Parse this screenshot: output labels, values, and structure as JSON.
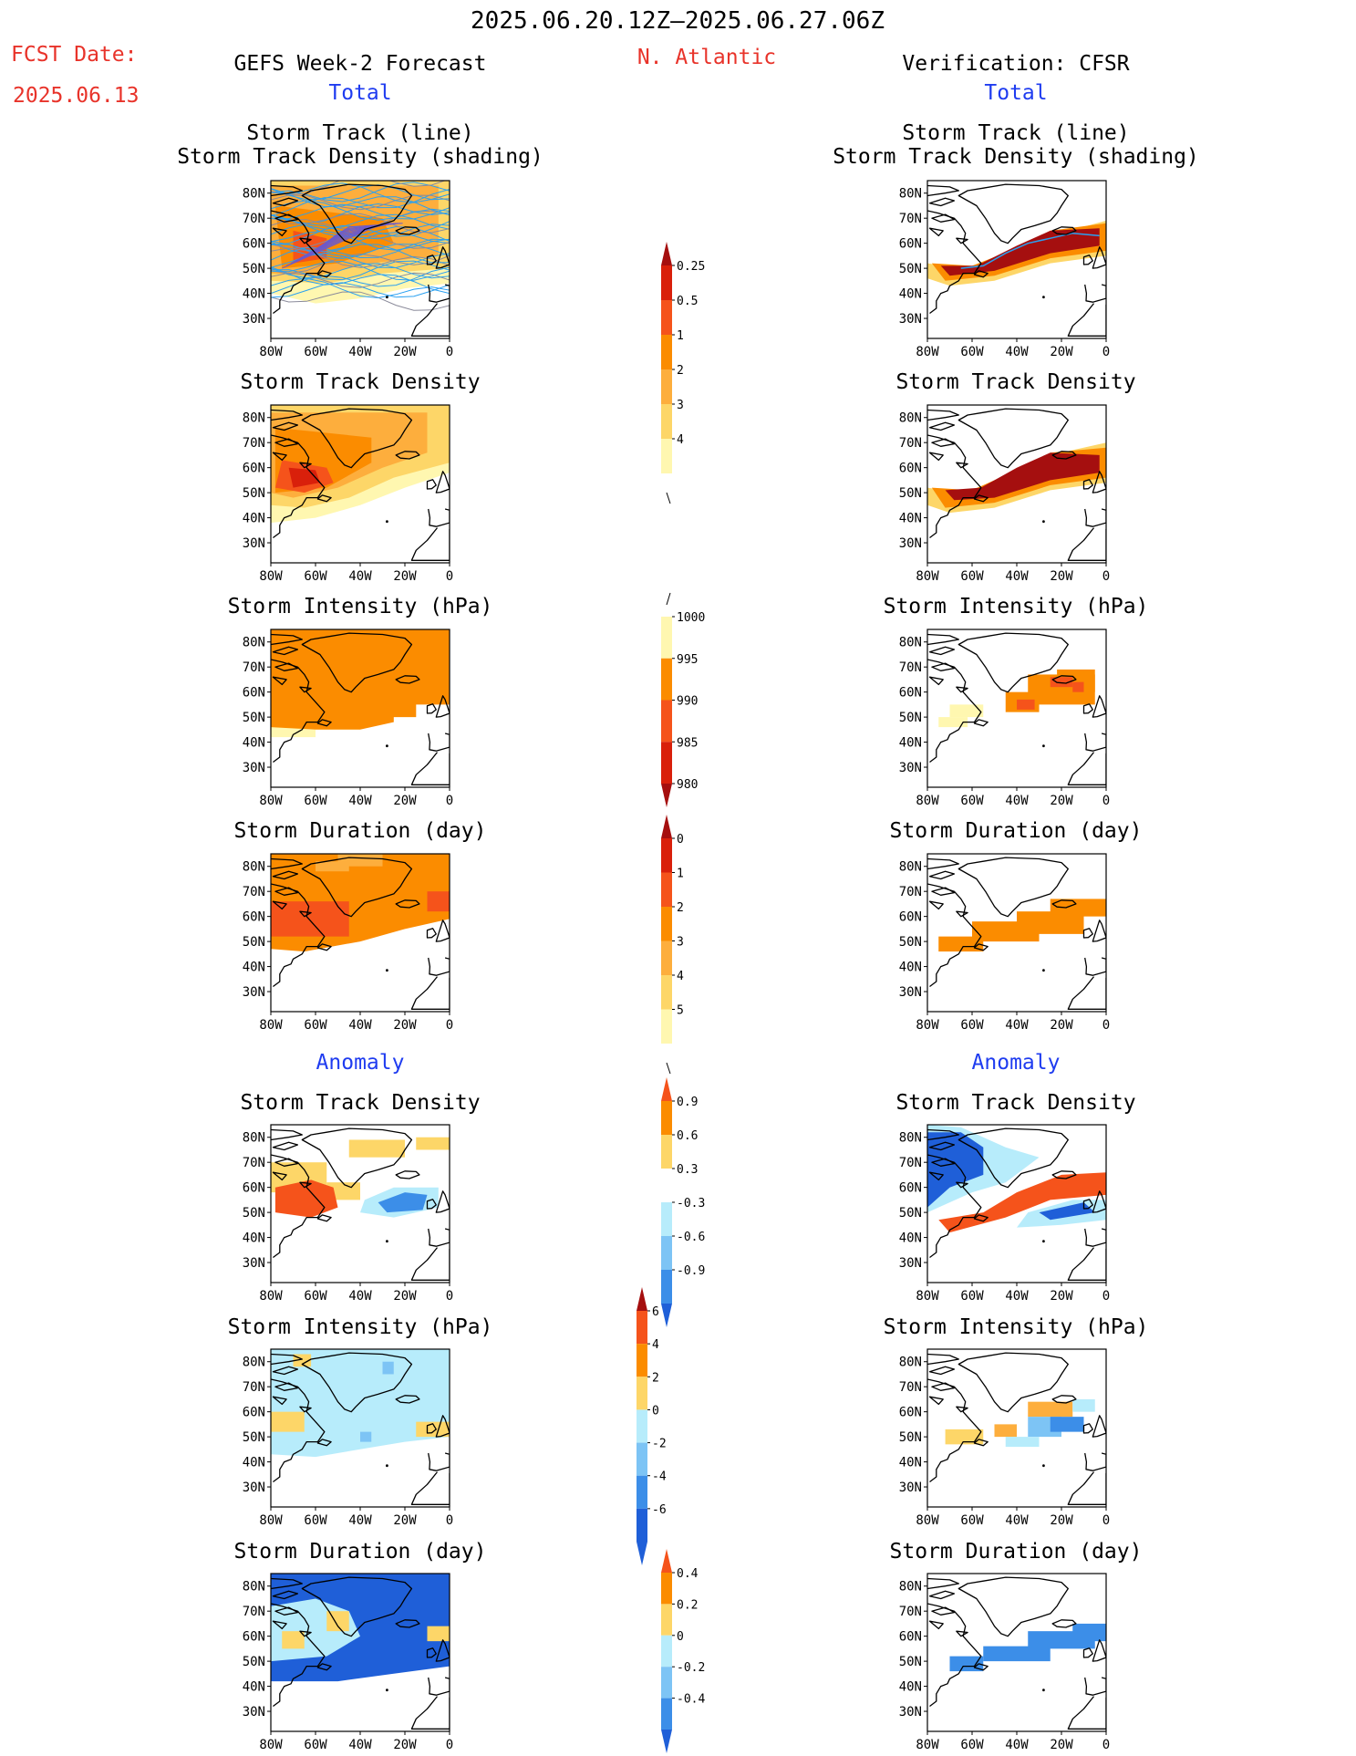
{
  "header": {
    "period": "2025.06.20.12Z–2025.06.27.06Z",
    "fcst_label": "FCST Date:",
    "fcst_date": "2025.06.13",
    "left_title": "GEFS Week-2 Forecast",
    "region": "N. Atlantic",
    "right_title": "Verification: CFSR",
    "left_section_total": "Total",
    "right_section_total": "Total",
    "left_section_anomaly": "Anomaly",
    "right_section_anomaly": "Anomaly"
  },
  "panel_titles": {
    "track_line": "Storm Track (line)",
    "track_shading": "Storm Track Density (shading)",
    "track_density": "Storm Track Density",
    "intensity": "Storm Intensity (hPa)",
    "duration": "Storm Duration (day)"
  },
  "map_axes": {
    "lon_ticks": [
      "80W",
      "60W",
      "40W",
      "20W",
      "0"
    ],
    "lat_ticks": [
      "80N",
      "70N",
      "60N",
      "50N",
      "40N",
      "30N"
    ]
  },
  "colors": {
    "pale_yellow": "#fff7b0",
    "yellow": "#fdd668",
    "light_orange": "#fdae3d",
    "orange": "#fb8c00",
    "dark_orange": "#f5531b",
    "red": "#d9200b",
    "dark_red": "#a50f0f",
    "light_blue": "#b7ecfb",
    "mid_blue": "#7dc4f5",
    "blue": "#3c8ee8",
    "dark_blue": "#1f5fd8",
    "track_blue": "#2aa0f0",
    "track_grey": "#8a8a9a"
  },
  "chart_data": [
    {
      "type": "heatmap",
      "id": "colorbar_track_density",
      "levels": [
        "0.25",
        "0.5",
        "1",
        "2",
        "3",
        "4"
      ]
    },
    {
      "type": "heatmap",
      "id": "colorbar_intensity",
      "levels": [
        "1000",
        "995",
        "990",
        "985",
        "980"
      ]
    },
    {
      "type": "heatmap",
      "id": "colorbar_duration",
      "levels": [
        "0",
        "1",
        "2",
        "3",
        "4",
        "5"
      ]
    },
    {
      "type": "heatmap",
      "id": "colorbar_density_anomaly",
      "levels": [
        "0.9",
        "0.6",
        "0.3",
        "-0.3",
        "-0.6",
        "-0.9"
      ]
    },
    {
      "type": "heatmap",
      "id": "colorbar_intensity_anomaly",
      "levels": [
        "6",
        "4",
        "2",
        "0",
        "-2",
        "-4",
        "-6"
      ]
    },
    {
      "type": "heatmap",
      "id": "colorbar_duration_anomaly",
      "levels": [
        "0.4",
        "0.2",
        "0",
        "-0.2",
        "-0.4"
      ]
    }
  ]
}
